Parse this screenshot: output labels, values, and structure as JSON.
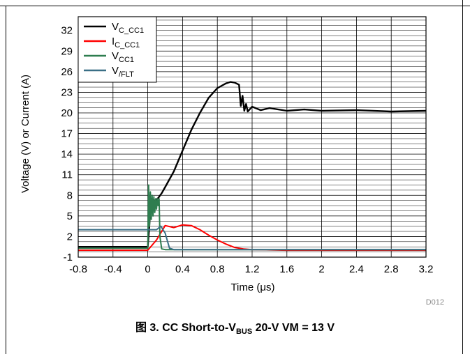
{
  "chart_data": {
    "type": "line",
    "title": "",
    "xlabel_text": "Time (",
    "xlabel_unit": "μs",
    "xlabel_close": ")",
    "ylabel": "Voltage (V) or Current (A)",
    "xlim": [
      -0.8,
      3.2
    ],
    "ylim": [
      -1,
      34
    ],
    "x_ticks": [
      -0.8,
      -0.4,
      0,
      0.4,
      0.8,
      1.2,
      1.6,
      2,
      2.4,
      2.8,
      3.2
    ],
    "x_tick_labels": [
      "-0.8",
      "-0.4",
      "0",
      "0.4",
      "0.8",
      "1.2",
      "1.6",
      "2",
      "2.4",
      "2.8",
      "3.2"
    ],
    "y_ticks": [
      -1,
      2,
      5,
      8,
      11,
      14,
      17,
      20,
      23,
      26,
      29,
      32
    ],
    "y_tick_labels": [
      "-1",
      "2",
      "5",
      "8",
      "11",
      "14",
      "17",
      "20",
      "23",
      "26",
      "29",
      "32"
    ],
    "minor_gridlines_per_major": 3,
    "grid": true,
    "legend_position": "top-left",
    "series": [
      {
        "name": "V_C_CC1",
        "label_main": "V",
        "label_sub": "C_CC1",
        "color": "#000000",
        "x": [
          -0.8,
          -0.4,
          0.0,
          0.04,
          0.08,
          0.12,
          0.16,
          0.2,
          0.3,
          0.4,
          0.5,
          0.6,
          0.7,
          0.8,
          0.9,
          0.95,
          1.0,
          1.05,
          1.07,
          1.09,
          1.11,
          1.13,
          1.15,
          1.2,
          1.3,
          1.4,
          1.6,
          1.8,
          2.0,
          2.4,
          2.8,
          3.2
        ],
        "y": [
          0.5,
          0.5,
          0.5,
          7.5,
          7.2,
          7.6,
          8.3,
          9.2,
          11.5,
          14.5,
          17.5,
          20.0,
          22.2,
          23.6,
          24.3,
          24.5,
          24.4,
          24.1,
          21.0,
          22.5,
          20.3,
          21.3,
          20.2,
          20.9,
          20.4,
          20.7,
          20.3,
          20.5,
          20.3,
          20.4,
          20.2,
          20.3
        ]
      },
      {
        "name": "I_C_CC1",
        "label_main": "I",
        "label_sub": "C_CC1",
        "color": "#ff0000",
        "x": [
          -0.8,
          0.0,
          0.1,
          0.2,
          0.3,
          0.4,
          0.5,
          0.6,
          0.7,
          0.8,
          0.9,
          1.0,
          1.1,
          1.2,
          1.4,
          1.6,
          2.0,
          2.4,
          2.8,
          3.2
        ],
        "y": [
          0.0,
          0.0,
          1.5,
          3.6,
          3.3,
          3.7,
          3.6,
          3.0,
          2.2,
          1.5,
          0.9,
          0.4,
          0.2,
          0.1,
          0.05,
          0.0,
          0.0,
          0.0,
          0.0,
          0.0
        ]
      },
      {
        "name": "V_CC1",
        "label_main": "V",
        "label_sub": "CC1",
        "color": "#2e7d4f",
        "x": [
          -0.8,
          -0.4,
          0.0,
          0.01,
          0.02,
          0.03,
          0.04,
          0.05,
          0.06,
          0.07,
          0.08,
          0.09,
          0.1,
          0.11,
          0.12,
          0.13,
          0.14,
          0.16,
          0.2,
          0.4,
          0.8,
          1.2,
          1.6,
          2.0,
          2.4,
          2.8,
          3.2
        ],
        "y": [
          0.3,
          0.3,
          0.3,
          9.5,
          3.5,
          8.5,
          4.5,
          8.0,
          5.0,
          7.8,
          5.5,
          7.5,
          6.0,
          7.5,
          6.5,
          7.5,
          2.0,
          0.2,
          0.1,
          0.1,
          0.1,
          0.1,
          0.1,
          0.1,
          0.1,
          0.1,
          0.1
        ]
      },
      {
        "name": "V/FLT",
        "label_main": "V",
        "label_sub": "/FLT",
        "color": "#3a6f86",
        "x": [
          -0.8,
          -0.4,
          0.0,
          0.1,
          0.15,
          0.2,
          0.25,
          0.3,
          0.6,
          1.0,
          1.6,
          2.4,
          3.2
        ],
        "y": [
          3.0,
          3.0,
          3.0,
          3.0,
          3.5,
          2.5,
          0.3,
          0.1,
          0.1,
          0.1,
          0.1,
          0.1,
          0.1
        ]
      }
    ],
    "annotation": "D012"
  },
  "caption": {
    "prefix": "图 3. CC Short-to-V",
    "sub": "BUS",
    "suffix": " 20-V VM = 13 V"
  }
}
